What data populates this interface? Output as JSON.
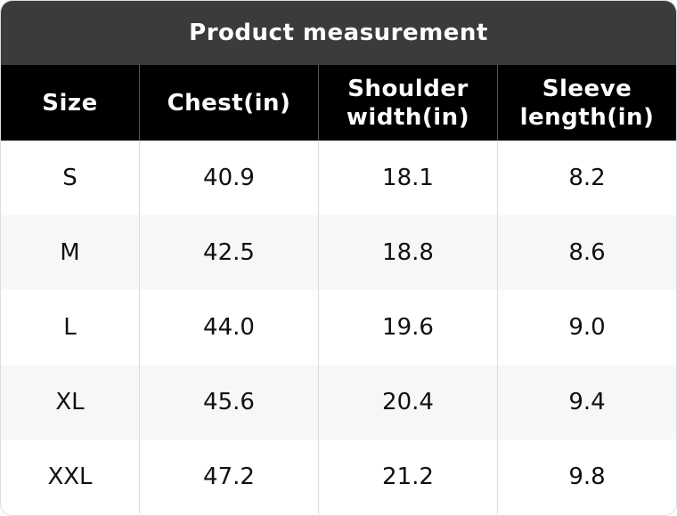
{
  "header": {
    "title": "Product measurement"
  },
  "table": {
    "columns": [
      "Size",
      "Chest(in)",
      "Shoulder width(in)",
      "Sleeve length(in)"
    ],
    "rows": [
      [
        "S",
        "40.9",
        "18.1",
        "8.2"
      ],
      [
        "M",
        "42.5",
        "18.8",
        "8.6"
      ],
      [
        "L",
        "44.0",
        "19.6",
        "9.0"
      ],
      [
        "XL",
        "45.6",
        "20.4",
        "9.4"
      ],
      [
        "XXL",
        "47.2",
        "21.2",
        "9.8"
      ]
    ]
  }
}
